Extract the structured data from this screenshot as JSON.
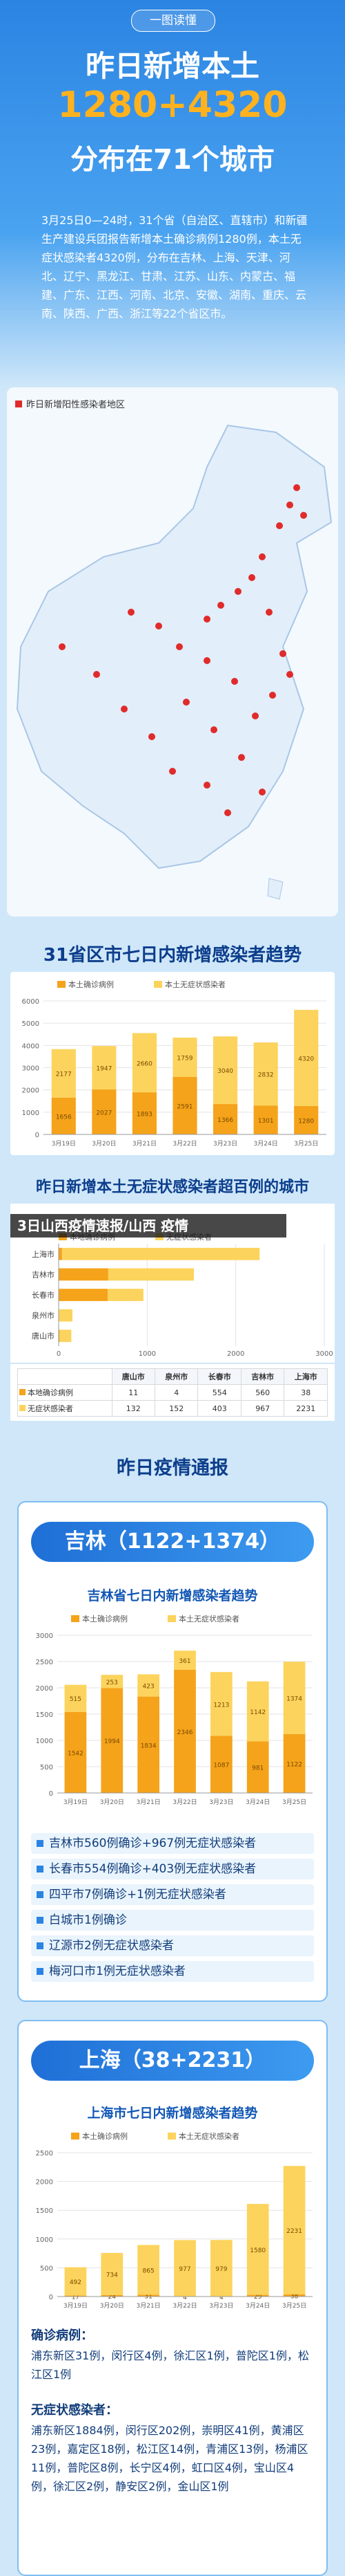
{
  "header": {
    "badge": "一图读懂",
    "title": "昨日新增本土",
    "highlight": "1280+4320",
    "subtitle": "分布在71个城市",
    "paragraph": "3月25日0—24时，31个省（自治区、直辖市）和新疆生产建设兵团报告新增本土确诊病例1280例，本土无症状感染者4320例，分布在吉林、上海、天津、河北、辽宁、黑龙江、甘肃、江苏、山东、内蒙古、福建、广东、江西、河南、北京、安徽、湖南、重庆、云南、陕西、广西、浙江等22个省区市。"
  },
  "map": {
    "label": "昨日新增阳性感染者地区"
  },
  "trend_chart": {
    "type": "bar",
    "title": "31省区市七日内新增感染者趋势",
    "stacked": true,
    "grid": true,
    "categories": [
      "3月19日",
      "3月20日",
      "3月21日",
      "3月22日",
      "3月23日",
      "3月24日",
      "3月25日"
    ],
    "series": [
      {
        "name": "本土确诊病例",
        "color": "#f5a31a",
        "values": [
          1656,
          2027,
          1893,
          2591,
          1366,
          1301,
          1280
        ]
      },
      {
        "name": "本土无症状感染者",
        "color": "#fcd35c",
        "values": [
          2177,
          1947,
          2660,
          1759,
          3040,
          2832,
          4320
        ]
      }
    ],
    "ylim": [
      0,
      6000
    ],
    "yticks": [
      0,
      1000,
      2000,
      3000,
      4000,
      5000,
      6000
    ]
  },
  "overlay_banner": "3日山西疫情速报/山西 疫情",
  "city_chart": {
    "type": "hbar",
    "title": "昨日新增本土无症状感染者超百例的城市",
    "stacked": true,
    "grid": true,
    "categories": [
      "唐山市",
      "泉州市",
      "长春市",
      "吉林市",
      "上海市"
    ],
    "series": [
      {
        "name": "本地确诊病例",
        "color": "#f5a31a",
        "values": [
          11,
          4,
          554,
          560,
          38
        ]
      },
      {
        "name": "无症状感染者",
        "color": "#fcd35c",
        "values": [
          132,
          152,
          403,
          967,
          2231
        ]
      }
    ],
    "xlim": [
      0,
      3000
    ],
    "xticks": [
      0,
      1000,
      2000,
      3000
    ]
  },
  "bulletin": {
    "title": "昨日疫情通报",
    "jilin": {
      "heading": "吉林（1122+1374）",
      "chart": {
        "type": "bar",
        "title": "吉林省七日内新增感染者趋势",
        "stacked": true,
        "grid": true,
        "categories": [
          "3月19日",
          "3月20日",
          "3月21日",
          "3月22日",
          "3月23日",
          "3月24日",
          "3月25日"
        ],
        "series": [
          {
            "name": "本土确诊病例",
            "color": "#f5a31a",
            "values": [
              1542,
              1994,
              1834,
              2346,
              1087,
              981,
              1122
            ]
          },
          {
            "name": "本土无症状感染者",
            "color": "#fcd35c",
            "values": [
              515,
              253,
              423,
              361,
              1213,
              1142,
              1374
            ]
          }
        ],
        "ylim": [
          0,
          3000
        ],
        "yticks": [
          0,
          500,
          1000,
          1500,
          2000,
          2500,
          3000
        ]
      },
      "items": [
        "吉林市560例确诊+967例无症状感染者",
        "长春市554例确诊+403例无症状感染者",
        "四平市7例确诊+1例无症状感染者",
        "白城市1例确诊",
        "辽源市2例无症状感染者",
        "梅河口市1例无症状感染者"
      ]
    },
    "shanghai": {
      "heading": "上海（38+2231）",
      "chart": {
        "type": "bar",
        "title": "上海市七日内新增感染者趋势",
        "stacked": true,
        "grid": true,
        "categories": [
          "3月19日",
          "3月20日",
          "3月21日",
          "3月22日",
          "3月23日",
          "3月24日",
          "3月25日"
        ],
        "series": [
          {
            "name": "本土确诊病例",
            "color": "#f5a31a",
            "values": [
              17,
              24,
              31,
              4,
              4,
              29,
              38
            ]
          },
          {
            "name": "本土无症状感染者",
            "color": "#fcd35c",
            "values": [
              492,
              734,
              865,
              977,
              979,
              1580,
              2231
            ]
          }
        ],
        "ylim": [
          0,
          2500
        ],
        "yticks": [
          0,
          500,
          1000,
          1500,
          2000,
          2500
        ]
      },
      "confirmed_label": "确诊病例：",
      "confirmed_text": "浦东新区31例，闵行区4例，徐汇区1例，普陀区1例，松江区1例",
      "asymptomatic_label": "无症状感染者：",
      "asymptomatic_text": "浦东新区1884例，闵行区202例，崇明区41例，黄浦区23例，嘉定区18例，松江区14例，青浦区13例，杨浦区11例，普陀区8例，长宁区4例，虹口区4例，宝山区4例，徐汇区2例，静安区2例，金山区1例"
    }
  }
}
